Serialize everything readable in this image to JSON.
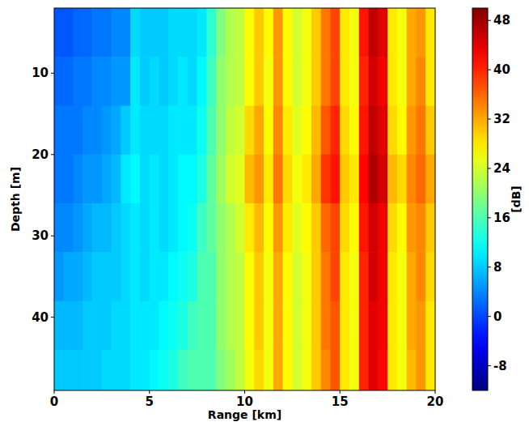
{
  "chart_data": {
    "type": "heatmap",
    "x_label": "Range [km]",
    "y_label": "Depth [m]",
    "xlim": [
      0,
      20
    ],
    "ylim": [
      2,
      49
    ],
    "xticks": [
      0,
      5,
      10,
      15,
      20
    ],
    "yticks": [
      10,
      20,
      30,
      40
    ],
    "x_edges": [
      0,
      0.5,
      1,
      1.5,
      2,
      2.5,
      3,
      3.5,
      4,
      4.5,
      5,
      5.5,
      6,
      6.5,
      7,
      7.5,
      8,
      8.5,
      9,
      9.5,
      10,
      10.5,
      11,
      11.5,
      12,
      12.5,
      13,
      13.5,
      14,
      14.5,
      15,
      15.5,
      16,
      16.5,
      17,
      17.5,
      18,
      18.5,
      19,
      19.5,
      20
    ],
    "y_edges": [
      2,
      8,
      14,
      20,
      26,
      32,
      38,
      44,
      49
    ],
    "cells": [
      [
        1,
        1,
        2,
        2,
        3,
        3,
        4,
        4,
        9,
        8,
        8,
        8,
        9,
        9,
        9,
        10,
        14,
        19,
        22,
        23,
        27,
        30,
        27,
        33,
        27,
        24,
        26,
        30,
        35,
        38,
        28,
        26,
        41,
        46,
        44,
        28,
        26,
        32,
        33,
        28
      ],
      [
        2,
        2,
        3,
        3,
        4,
        4,
        5,
        5,
        10,
        8,
        9,
        8,
        9,
        10,
        9,
        11,
        15,
        20,
        22,
        23,
        27,
        30,
        26,
        33,
        27,
        24,
        26,
        30,
        35,
        38,
        28,
        26,
        40,
        45,
        43,
        28,
        26,
        32,
        34,
        28
      ],
      [
        3,
        3,
        3,
        4,
        4,
        5,
        6,
        8,
        10,
        9,
        9,
        9,
        10,
        10,
        10,
        12,
        16,
        20,
        23,
        24,
        29,
        32,
        27,
        34,
        28,
        25,
        27,
        31,
        37,
        40,
        29,
        27,
        41,
        46,
        44,
        29,
        27,
        33,
        35,
        30
      ],
      [
        3,
        3,
        4,
        5,
        5,
        6,
        7,
        10,
        11,
        9,
        10,
        9,
        10,
        11,
        11,
        13,
        17,
        21,
        24,
        25,
        31,
        33,
        28,
        35,
        29,
        26,
        28,
        32,
        39,
        41,
        30,
        28,
        42,
        47,
        45,
        31,
        29,
        34,
        36,
        32
      ],
      [
        4,
        4,
        5,
        6,
        7,
        7,
        8,
        9,
        10,
        9,
        10,
        9,
        10,
        11,
        12,
        15,
        17,
        20,
        22,
        24,
        28,
        31,
        27,
        33,
        28,
        25,
        27,
        30,
        36,
        38,
        29,
        27,
        41,
        45,
        43,
        29,
        27,
        33,
        34,
        30
      ],
      [
        5,
        6,
        6,
        7,
        8,
        8,
        8,
        9,
        10,
        9,
        10,
        10,
        11,
        12,
        13,
        16,
        16,
        20,
        22,
        23,
        27,
        30,
        26,
        32,
        27,
        24,
        26,
        30,
        35,
        38,
        28,
        26,
        40,
        45,
        43,
        28,
        26,
        32,
        34,
        29
      ],
      [
        7,
        7,
        7,
        8,
        8,
        8,
        9,
        9,
        10,
        10,
        10,
        11,
        12,
        13,
        15,
        16,
        16,
        20,
        22,
        23,
        27,
        30,
        26,
        32,
        27,
        24,
        26,
        30,
        35,
        37,
        28,
        26,
        40,
        44,
        43,
        28,
        26,
        32,
        33,
        28
      ],
      [
        8,
        8,
        8,
        8,
        8,
        9,
        9,
        9,
        10,
        10,
        11,
        12,
        13,
        15,
        16,
        16,
        16,
        19,
        21,
        23,
        26,
        29,
        26,
        32,
        27,
        24,
        26,
        30,
        34,
        37,
        28,
        26,
        40,
        44,
        42,
        28,
        26,
        31,
        33,
        28
      ]
    ],
    "colorbar": {
      "label": "[dB]",
      "range": [
        -12,
        50
      ],
      "ticks": [
        -8,
        0,
        8,
        16,
        24,
        32,
        40,
        48
      ]
    }
  }
}
